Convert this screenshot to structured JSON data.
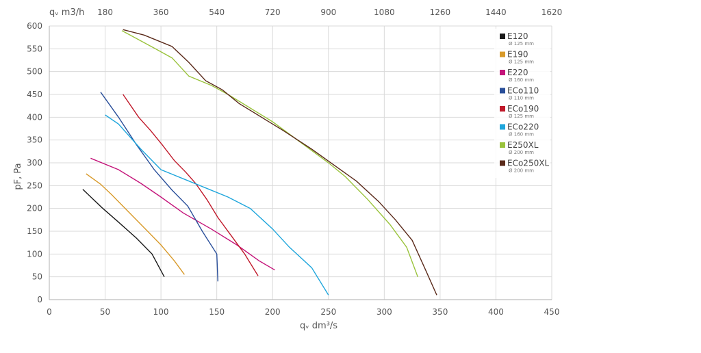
{
  "chart_data": {
    "type": "line",
    "xlabel": "qᵥ dm³/s",
    "ylabel": "pF, Pa",
    "top_axis_label": "qᵥ m3/h",
    "xlim": [
      0,
      450
    ],
    "ylim": [
      0,
      600
    ],
    "x_ticks": [
      "0",
      "50",
      "100",
      "150",
      "200",
      "250",
      "300",
      "350",
      "400",
      "450"
    ],
    "y_ticks": [
      "0",
      "50",
      "100",
      "150",
      "200",
      "250",
      "300",
      "350",
      "400",
      "450",
      "500",
      "550",
      "600"
    ],
    "top_ticks": [
      "180",
      "360",
      "540",
      "720",
      "900",
      "1080",
      "1260",
      "1440",
      "1620"
    ],
    "grid": true,
    "legend_position": "top-right",
    "series": [
      {
        "name": "E120",
        "sub": "Ø 125 mm",
        "color": "#1a1a1a",
        "points": [
          [
            30,
            242
          ],
          [
            47,
            202
          ],
          [
            62,
            170
          ],
          [
            78,
            135
          ],
          [
            92,
            100
          ],
          [
            103,
            50
          ]
        ]
      },
      {
        "name": "E190",
        "sub": "Ø 125 mm",
        "color": "#d89a2a",
        "points": [
          [
            33,
            276
          ],
          [
            46,
            253
          ],
          [
            56,
            230
          ],
          [
            68,
            200
          ],
          [
            84,
            160
          ],
          [
            100,
            120
          ],
          [
            112,
            85
          ],
          [
            121,
            55
          ]
        ]
      },
      {
        "name": "E220",
        "sub": "Ø 160 mm",
        "color": "#c4147a",
        "points": [
          [
            37,
            310
          ],
          [
            62,
            285
          ],
          [
            82,
            255
          ],
          [
            100,
            225
          ],
          [
            120,
            190
          ],
          [
            145,
            155
          ],
          [
            168,
            120
          ],
          [
            188,
            85
          ],
          [
            202,
            65
          ]
        ]
      },
      {
        "name": "ECo110",
        "sub": "Ø 110 mm",
        "color": "#2a4f9a",
        "points": [
          [
            46,
            455
          ],
          [
            62,
            400
          ],
          [
            78,
            340
          ],
          [
            94,
            285
          ],
          [
            110,
            240
          ],
          [
            124,
            205
          ],
          [
            137,
            150
          ],
          [
            150,
            100
          ],
          [
            151,
            40
          ]
        ]
      },
      {
        "name": "ECo190",
        "sub": "Ø 125 mm",
        "color": "#c0192a",
        "points": [
          [
            66,
            450
          ],
          [
            80,
            400
          ],
          [
            91,
            370
          ],
          [
            101,
            340
          ],
          [
            112,
            305
          ],
          [
            122,
            280
          ],
          [
            131,
            255
          ],
          [
            141,
            220
          ],
          [
            151,
            180
          ],
          [
            163,
            140
          ],
          [
            175,
            100
          ],
          [
            187,
            52
          ]
        ]
      },
      {
        "name": "ECo220",
        "sub": "Ø 160 mm",
        "color": "#1fa6dc",
        "points": [
          [
            50,
            405
          ],
          [
            62,
            385
          ],
          [
            82,
            330
          ],
          [
            100,
            285
          ],
          [
            120,
            265
          ],
          [
            140,
            245
          ],
          [
            160,
            225
          ],
          [
            180,
            200
          ],
          [
            200,
            155
          ],
          [
            215,
            115
          ],
          [
            235,
            70
          ],
          [
            250,
            10
          ]
        ]
      },
      {
        "name": "E250XL",
        "sub": "Ø 200 mm",
        "color": "#9ac33c",
        "points": [
          [
            65,
            590
          ],
          [
            80,
            570
          ],
          [
            95,
            550
          ],
          [
            110,
            530
          ],
          [
            125,
            490
          ],
          [
            145,
            470
          ],
          [
            160,
            450
          ],
          [
            180,
            420
          ],
          [
            200,
            390
          ],
          [
            225,
            345
          ],
          [
            250,
            300
          ],
          [
            265,
            270
          ],
          [
            285,
            220
          ],
          [
            305,
            165
          ],
          [
            320,
            115
          ],
          [
            330,
            50
          ]
        ]
      },
      {
        "name": "ECo250XL",
        "sub": "Ø 200 mm",
        "color": "#5a2a1a",
        "points": [
          [
            66,
            592
          ],
          [
            85,
            580
          ],
          [
            100,
            565
          ],
          [
            110,
            555
          ],
          [
            125,
            520
          ],
          [
            140,
            480
          ],
          [
            155,
            460
          ],
          [
            170,
            430
          ],
          [
            190,
            400
          ],
          [
            210,
            370
          ],
          [
            235,
            330
          ],
          [
            255,
            295
          ],
          [
            275,
            260
          ],
          [
            295,
            215
          ],
          [
            310,
            175
          ],
          [
            325,
            130
          ],
          [
            337,
            65
          ],
          [
            347,
            10
          ]
        ]
      }
    ]
  }
}
